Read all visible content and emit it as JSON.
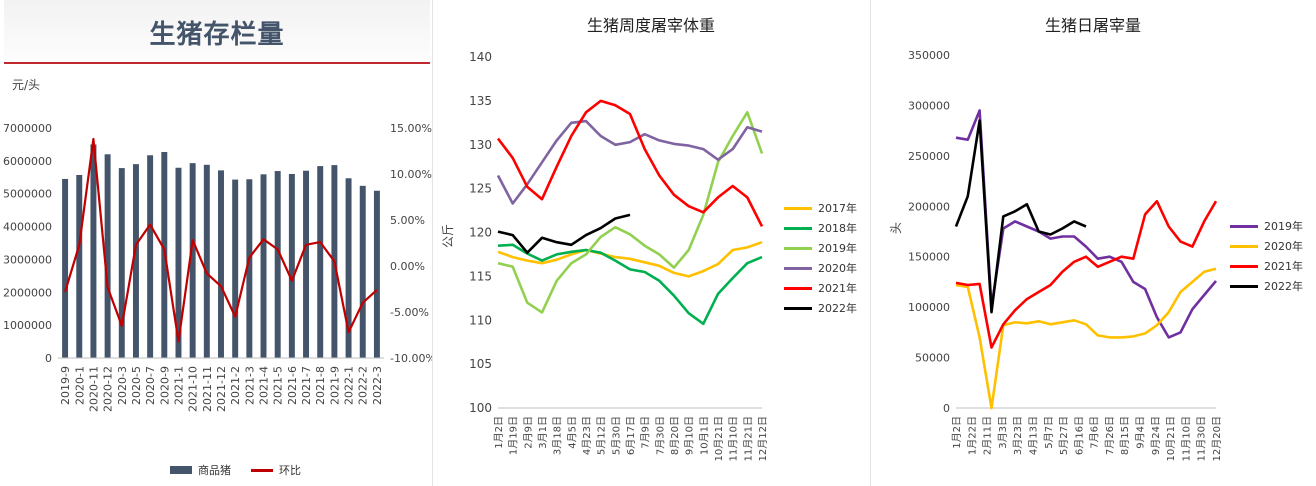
{
  "chart_data": [
    {
      "type": "bar",
      "title": "生猪存栏量",
      "ylabel": "元/头",
      "categories": [
        "2019-9",
        "2020-1",
        "2020-11",
        "2020-12",
        "2020-3",
        "2020-5",
        "2020-7",
        "2020-9",
        "2021-1",
        "2021-10",
        "2021-11",
        "2021-12",
        "2021-2",
        "2021-3",
        "2021-4",
        "2021-5",
        "2021-6",
        "2021-7",
        "2021-8",
        "2021-9",
        "2022-1",
        "2022-2",
        "2022-3"
      ],
      "ylim": [
        0,
        7000000
      ],
      "y2lim": [
        -10,
        15
      ],
      "yticks": [
        "0",
        "1000000",
        "2000000",
        "3000000",
        "4000000",
        "5000000",
        "6000000",
        "7000000"
      ],
      "y2ticks": [
        "-10.00%",
        "-5.00%",
        "0.00%",
        "5.00%",
        "10.00%",
        "15.00%"
      ],
      "series": [
        {
          "name": "商品猪",
          "kind": "bar",
          "color": "#44546a",
          "values": [
            5450000,
            5570000,
            6500000,
            6200000,
            5780000,
            5900000,
            6170000,
            6270000,
            5790000,
            5930000,
            5880000,
            5710000,
            5430000,
            5440000,
            5590000,
            5690000,
            5600000,
            5700000,
            5840000,
            5870000,
            5470000,
            5240000,
            5090000
          ]
        },
        {
          "name": "环比",
          "kind": "line",
          "axis": "right",
          "color": "#c00000",
          "values": [
            -2.8,
            2.3,
            13.8,
            -2.3,
            -6.5,
            2.3,
            4.5,
            1.8,
            -8.2,
            2.8,
            -0.8,
            -2.2,
            -5.5,
            0.9,
            2.9,
            1.8,
            -1.6,
            2.3,
            2.6,
            0.5,
            -7.2,
            -4.0,
            -2.6
          ]
        }
      ]
    },
    {
      "type": "line",
      "title": "生猪周度屠宰体重",
      "ylabel": "公斤",
      "ylim": [
        100,
        140
      ],
      "yticks": [
        "100",
        "105",
        "110",
        "115",
        "120",
        "125",
        "130",
        "135",
        "140"
      ],
      "xticks": [
        "1月2日",
        "1月19日",
        "2月9日",
        "3月1日",
        "3月18日",
        "4月5日",
        "4月23日",
        "5月12日",
        "5月30日",
        "6月17日",
        "7月9日",
        "7月30日",
        "8月20日",
        "9月10日",
        "10月1日",
        "10月21日",
        "11月10日",
        "11月21日",
        "12月12日"
      ],
      "series": [
        {
          "name": "2017年",
          "color": "#ffc000",
          "values": [
            117.8,
            117.2,
            116.8,
            116.5,
            116.9,
            117.5,
            118.0,
            117.6,
            117.2,
            117.0,
            116.6,
            116.2,
            115.4,
            115.0,
            115.6,
            116.4,
            118.0,
            118.3,
            118.9
          ]
        },
        {
          "name": "2018年",
          "color": "#00b050",
          "values": [
            118.5,
            118.6,
            117.6,
            116.8,
            117.5,
            117.8,
            118.0,
            117.7,
            116.8,
            115.8,
            115.5,
            114.5,
            112.8,
            110.8,
            109.6,
            113.0,
            114.8,
            116.5,
            117.2
          ]
        },
        {
          "name": "2019年",
          "color": "#92d050",
          "values": [
            116.5,
            116.1,
            112.0,
            110.9,
            114.5,
            116.5,
            117.5,
            119.5,
            120.6,
            119.8,
            118.5,
            117.5,
            116.0,
            118.0,
            122.0,
            128.0,
            131.0,
            133.7,
            129.0
          ]
        },
        {
          "name": "2020年",
          "color": "#8064a2",
          "values": [
            126.5,
            123.3,
            125.5,
            128.0,
            130.5,
            132.5,
            132.7,
            131.0,
            130.0,
            130.3,
            131.2,
            130.5,
            130.1,
            129.9,
            129.5,
            128.3,
            129.5,
            132.0,
            131.5
          ]
        },
        {
          "name": "2021年",
          "color": "#ff0000",
          "values": [
            130.7,
            128.5,
            125.2,
            123.8,
            127.5,
            131.0,
            133.7,
            135.0,
            134.5,
            133.5,
            129.5,
            126.5,
            124.3,
            123.0,
            122.3,
            124.0,
            125.3,
            124.0,
            120.7
          ]
        },
        {
          "name": "2022年",
          "color": "#000000",
          "values": [
            120.1,
            119.7,
            117.7,
            119.4,
            118.9,
            118.6,
            119.7,
            120.5,
            121.6,
            122.0,
            null,
            null,
            null,
            null,
            null,
            null,
            null,
            null,
            null
          ]
        }
      ]
    },
    {
      "type": "line",
      "title": "生猪日屠宰量",
      "ylabel": "头",
      "ylim": [
        0,
        350000
      ],
      "yticks": [
        "0",
        "50000",
        "100000",
        "150000",
        "200000",
        "250000",
        "300000",
        "350000"
      ],
      "xticks": [
        "1月2日",
        "1月22日",
        "2月11日",
        "3月3日",
        "3月23日",
        "4月13日",
        "5月7日",
        "5月27日",
        "6月16日",
        "7月6日",
        "7月26日",
        "8月15日",
        "9月4日",
        "9月24日",
        "10月21日",
        "11月10日",
        "11月30日",
        "12月20日"
      ],
      "series": [
        {
          "name": "2019年",
          "color": "#7030a0",
          "values": [
            268000,
            266000,
            295000,
            100000,
            178000,
            185000,
            180000,
            175000,
            168000,
            170000,
            170000,
            160000,
            148000,
            150000,
            145000,
            125000,
            118000,
            90000,
            70000,
            75000,
            98000,
            112000,
            126000
          ]
        },
        {
          "name": "2020年",
          "color": "#ffc000",
          "values": [
            122000,
            120000,
            70000,
            0,
            82000,
            85000,
            84000,
            86000,
            83000,
            85000,
            87000,
            83000,
            72000,
            70000,
            70000,
            71000,
            74000,
            82000,
            95000,
            115000,
            125000,
            135000,
            138000
          ]
        },
        {
          "name": "2021年",
          "color": "#ff0000",
          "values": [
            124000,
            122000,
            123000,
            60000,
            83000,
            97000,
            108000,
            115000,
            122000,
            135000,
            145000,
            150000,
            140000,
            145000,
            150000,
            148000,
            192000,
            205000,
            180000,
            165000,
            160000,
            185000,
            205000
          ]
        },
        {
          "name": "2022年",
          "color": "#000000",
          "values": [
            180000,
            210000,
            285000,
            95000,
            190000,
            195000,
            202000,
            175000,
            172000,
            178000,
            185000,
            180000,
            null,
            null,
            null,
            null,
            null,
            null,
            null,
            null,
            null,
            null,
            null
          ]
        }
      ]
    }
  ]
}
